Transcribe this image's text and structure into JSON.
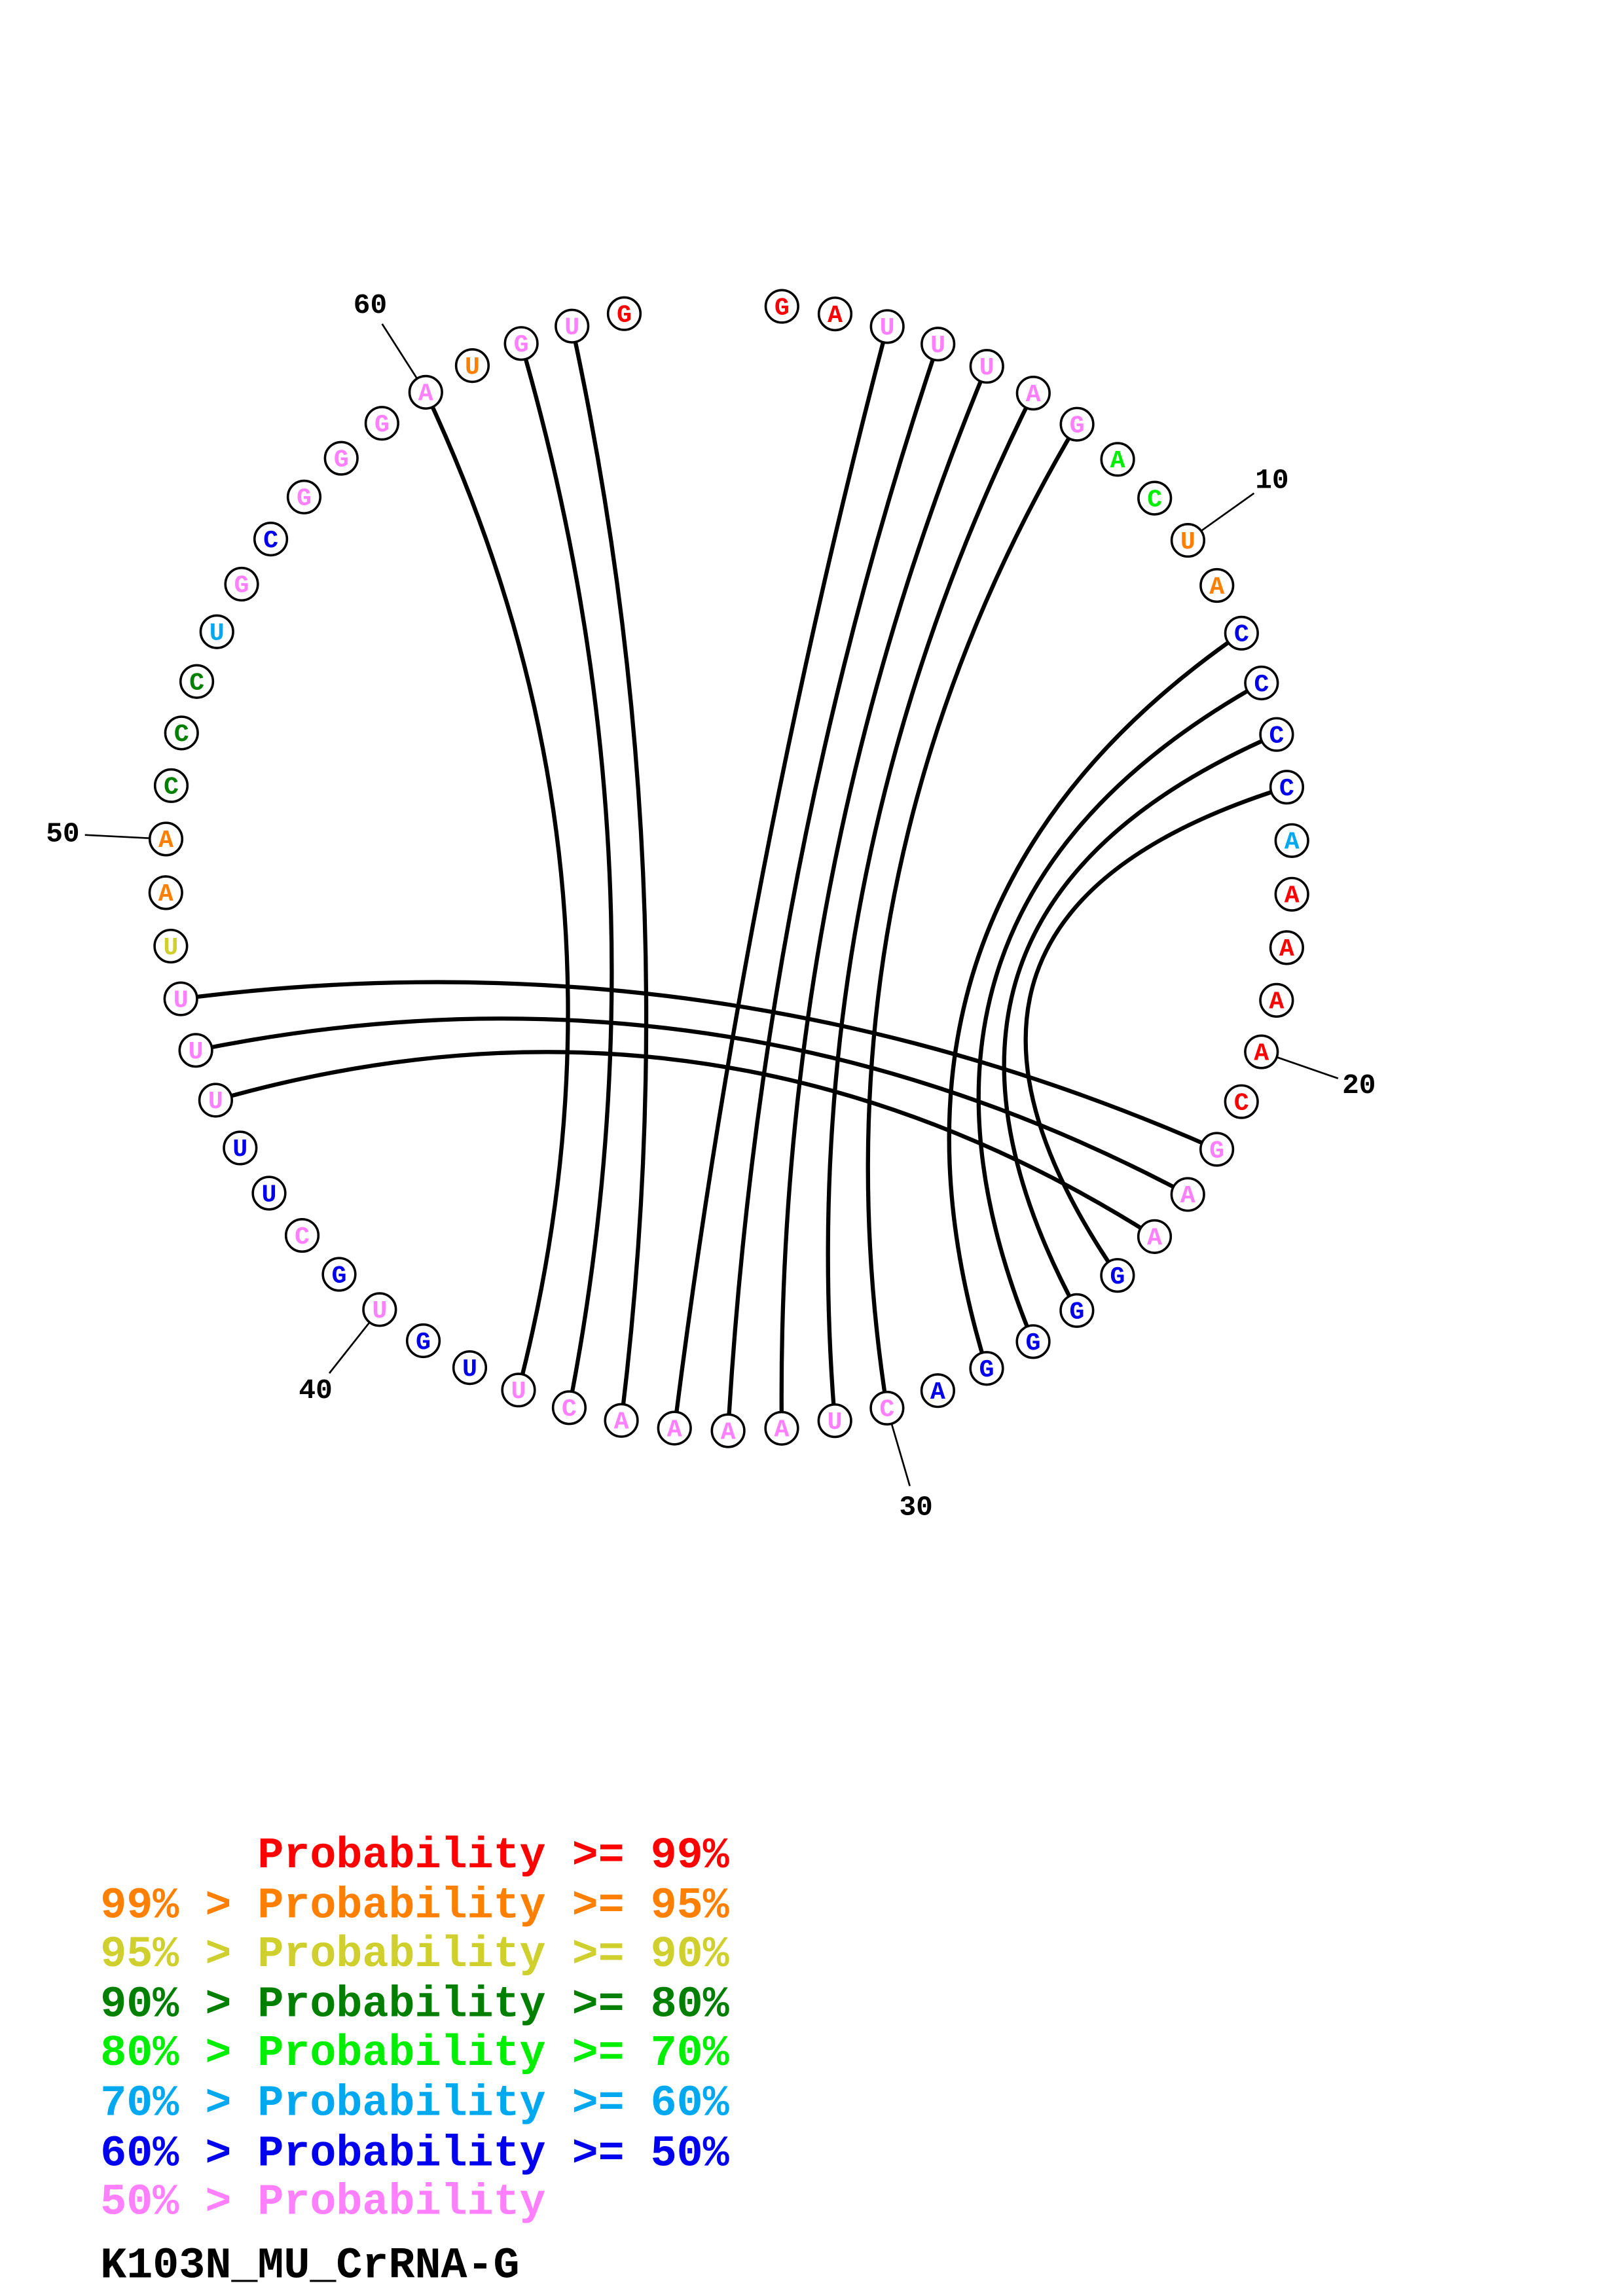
{
  "diagram": {
    "sequence": "GAUUUAGACUACCCCAAAAACGAAGGGGACUAAAACUUGUGCUUUUUUAACCCUGCGGGAUGUG",
    "probability_class": [
      0,
      0,
      7,
      7,
      7,
      7,
      7,
      4,
      4,
      1,
      1,
      6,
      6,
      6,
      6,
      5,
      0,
      0,
      0,
      0,
      0,
      7,
      7,
      7,
      6,
      6,
      6,
      6,
      6,
      7,
      7,
      7,
      7,
      7,
      7,
      7,
      7,
      6,
      6,
      7,
      6,
      7,
      6,
      6,
      7,
      7,
      7,
      2,
      1,
      1,
      3,
      3,
      3,
      5,
      7,
      6,
      7,
      7,
      7,
      7,
      1,
      7,
      7,
      0
    ],
    "pairs": [
      [
        3,
        34
      ],
      [
        4,
        33
      ],
      [
        5,
        32
      ],
      [
        6,
        31
      ],
      [
        7,
        30
      ],
      [
        12,
        28
      ],
      [
        13,
        27
      ],
      [
        14,
        26
      ],
      [
        15,
        25
      ],
      [
        22,
        47
      ],
      [
        23,
        46
      ],
      [
        24,
        45
      ],
      [
        35,
        63
      ],
      [
        36,
        62
      ],
      [
        37,
        60
      ]
    ],
    "position_labels": [
      "10",
      "20",
      "30",
      "40",
      "50",
      "60"
    ]
  },
  "legend": {
    "items": [
      {
        "text": "      Probability >= 99%",
        "color": "#ff0000"
      },
      {
        "text": "99% > Probability >= 95%",
        "color": "#ff8000"
      },
      {
        "text": "95% > Probability >= 90%",
        "color": "#cfcf2e"
      },
      {
        "text": "90% > Probability >= 80%",
        "color": "#007f00"
      },
      {
        "text": "80% > Probability >= 70%",
        "color": "#00ee00"
      },
      {
        "text": "70% > Probability >= 60%",
        "color": "#00a8f0"
      },
      {
        "text": "60% > Probability >= 50%",
        "color": "#0000ee"
      },
      {
        "text": "50% > Probability",
        "color": "#ff80ff"
      }
    ]
  },
  "title": "K103N_MU_CrRNA-G"
}
